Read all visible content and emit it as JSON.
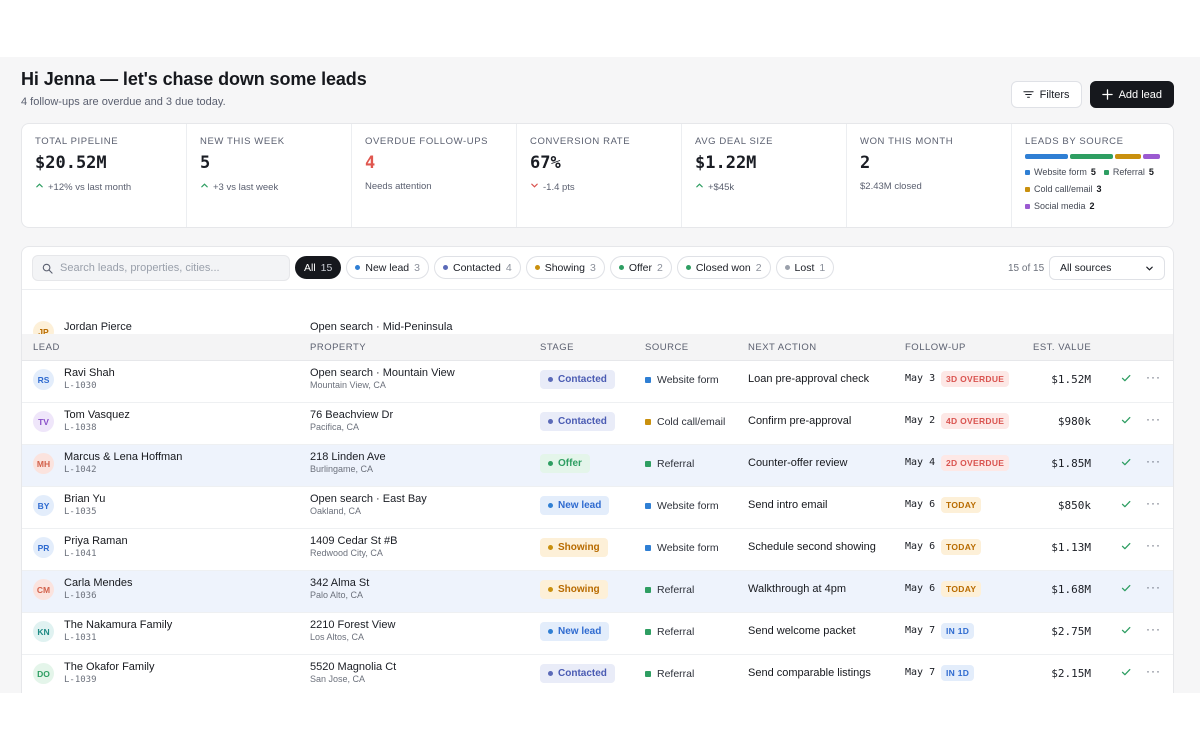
{
  "header": {
    "greeting": "Hi Jenna — let's chase down some leads",
    "subtitle": "4 follow-ups are overdue and 3 due today.",
    "filters_label": "Filters",
    "add_lead_label": "Add lead"
  },
  "stats": [
    {
      "label": "Total pipeline",
      "value": "$20.52M",
      "sub": "+12% vs last month",
      "trend": "up"
    },
    {
      "label": "New this week",
      "value": "5",
      "sub": "+3 vs last week",
      "trend": "up"
    },
    {
      "label": "Overdue follow-ups",
      "value": "4",
      "sub": "Needs attention",
      "trend": "none"
    },
    {
      "label": "Conversion rate",
      "value": "67%",
      "sub": "-1.4 pts",
      "trend": "down"
    },
    {
      "label": "Avg deal size",
      "value": "$1.22M",
      "sub": "+$45k",
      "trend": "up"
    },
    {
      "label": "Won this month",
      "value": "2",
      "sub": "$2.43M closed",
      "trend": "none"
    }
  ],
  "sources": {
    "label": "Leads by source",
    "items": [
      {
        "name": "Website form",
        "count": "5",
        "value": 5,
        "color": "#2f7fd4"
      },
      {
        "name": "Referral",
        "count": "5",
        "value": 5,
        "color": "#2e9e62"
      },
      {
        "name": "Cold call/email",
        "count": "3",
        "value": 3,
        "color": "#c9900e"
      },
      {
        "name": "Social media",
        "count": "2",
        "value": 2,
        "color": "#9b5ad1"
      }
    ]
  },
  "toolbar": {
    "search_placeholder": "Search leads, properties, cities...",
    "chips": [
      {
        "label": "All",
        "count": "15",
        "active": true,
        "color": ""
      },
      {
        "label": "New lead",
        "count": "3",
        "active": false,
        "color": "#2f7fd4"
      },
      {
        "label": "Contacted",
        "count": "4",
        "active": false,
        "color": "#5b6ab8"
      },
      {
        "label": "Showing",
        "count": "3",
        "active": false,
        "color": "#c9900e"
      },
      {
        "label": "Offer",
        "count": "2",
        "active": false,
        "color": "#2e9e62"
      },
      {
        "label": "Closed won",
        "count": "2",
        "active": false,
        "color": "#2e9e62"
      },
      {
        "label": "Lost",
        "count": "1",
        "active": false,
        "color": "#9aa0ab"
      }
    ],
    "count_label": "15 of 15",
    "source_select": "All sources"
  },
  "table": {
    "partial_row": {
      "initials": "JP",
      "name": "Jordan Pierce",
      "property": "Open search · Mid-Peninsula"
    },
    "columns": [
      "Lead",
      "Property",
      "Stage",
      "Source",
      "Next action",
      "Follow-up",
      "Est. value"
    ],
    "rows": [
      {
        "initials": "RS",
        "avatar_bg": "#e3edfb",
        "avatar_fg": "#2f6bd0",
        "name": "Ravi Shah",
        "id": "L-1030",
        "property": "Open search · Mountain View",
        "city": "Mountain View, CA",
        "stage": "Contacted",
        "stage_class": "s-contacted",
        "stage_dot": "#5b6ab8",
        "source": "Website form",
        "source_color": "#2f7fd4",
        "action": "Loan pre-approval check",
        "date": "May 3",
        "badge": "3D OVERDUE",
        "badge_class": "b-over",
        "value": "$1.52M",
        "highlight": false
      },
      {
        "initials": "TV",
        "avatar_bg": "#efe6fa",
        "avatar_fg": "#8a4fc9",
        "name": "Tom Vasquez",
        "id": "L-1038",
        "property": "76 Beachview Dr",
        "city": "Pacifica, CA",
        "stage": "Contacted",
        "stage_class": "s-contacted",
        "stage_dot": "#5b6ab8",
        "source": "Cold call/email",
        "source_color": "#c9900e",
        "action": "Confirm pre-approval",
        "date": "May 2",
        "badge": "4D OVERDUE",
        "badge_class": "b-over",
        "value": "$980k",
        "highlight": false
      },
      {
        "initials": "MH",
        "avatar_bg": "#fbe3de",
        "avatar_fg": "#d2614b",
        "name": "Marcus & Lena Hoffman",
        "id": "L-1042",
        "property": "218 Linden Ave",
        "city": "Burlingame, CA",
        "stage": "Offer",
        "stage_class": "s-offer",
        "stage_dot": "#2e9e62",
        "source": "Referral",
        "source_color": "#2e9e62",
        "action": "Counter-offer review",
        "date": "May 4",
        "badge": "2D OVERDUE",
        "badge_class": "b-over",
        "value": "$1.85M",
        "highlight": true
      },
      {
        "initials": "BY",
        "avatar_bg": "#e3edfb",
        "avatar_fg": "#2f6bd0",
        "name": "Brian Yu",
        "id": "L-1035",
        "property": "Open search · East Bay",
        "city": "Oakland, CA",
        "stage": "New lead",
        "stage_class": "s-new",
        "stage_dot": "#2f7fd4",
        "source": "Website form",
        "source_color": "#2f7fd4",
        "action": "Send intro email",
        "date": "May 6",
        "badge": "TODAY",
        "badge_class": "b-today",
        "value": "$850k",
        "highlight": false
      },
      {
        "initials": "PR",
        "avatar_bg": "#e3edfb",
        "avatar_fg": "#2f6bd0",
        "name": "Priya Raman",
        "id": "L-1041",
        "property": "1409 Cedar St #B",
        "city": "Redwood City, CA",
        "stage": "Showing",
        "stage_class": "s-showing",
        "stage_dot": "#c9900e",
        "source": "Website form",
        "source_color": "#2f7fd4",
        "action": "Schedule second showing",
        "date": "May 6",
        "badge": "TODAY",
        "badge_class": "b-today",
        "value": "$1.13M",
        "highlight": false
      },
      {
        "initials": "CM",
        "avatar_bg": "#fbe3de",
        "avatar_fg": "#d2614b",
        "name": "Carla Mendes",
        "id": "L-1036",
        "property": "342 Alma St",
        "city": "Palo Alto, CA",
        "stage": "Showing",
        "stage_class": "s-showing",
        "stage_dot": "#c9900e",
        "source": "Referral",
        "source_color": "#2e9e62",
        "action": "Walkthrough at 4pm",
        "date": "May 6",
        "badge": "TODAY",
        "badge_class": "b-today",
        "value": "$1.68M",
        "highlight": true
      },
      {
        "initials": "KN",
        "avatar_bg": "#e0f2f1",
        "avatar_fg": "#1f8a85",
        "name": "The Nakamura Family",
        "id": "L-1031",
        "property": "2210 Forest View",
        "city": "Los Altos, CA",
        "stage": "New lead",
        "stage_class": "s-new",
        "stage_dot": "#2f7fd4",
        "source": "Referral",
        "source_color": "#2e9e62",
        "action": "Send welcome packet",
        "date": "May 7",
        "badge": "IN 1D",
        "badge_class": "b-in",
        "value": "$2.75M",
        "highlight": false
      },
      {
        "initials": "DO",
        "avatar_bg": "#e4f5ea",
        "avatar_fg": "#2e9e62",
        "name": "The Okafor Family",
        "id": "L-1039",
        "property": "5520 Magnolia Ct",
        "city": "San Jose, CA",
        "stage": "Contacted",
        "stage_class": "s-contacted",
        "stage_dot": "#5b6ab8",
        "source": "Referral",
        "source_color": "#2e9e62",
        "action": "Send comparable listings",
        "date": "May 7",
        "badge": "IN 1D",
        "badge_class": "b-in",
        "value": "$2.15M",
        "highlight": false
      }
    ]
  }
}
